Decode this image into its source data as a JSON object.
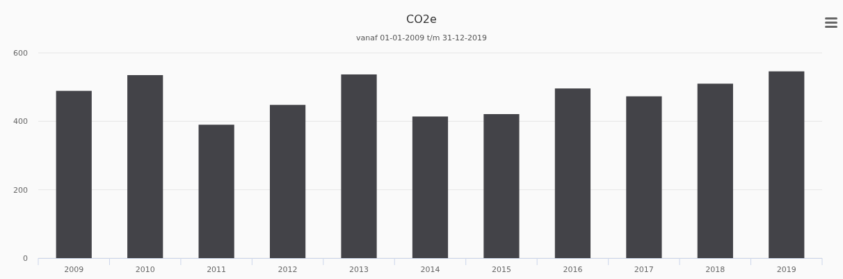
{
  "chart_data": {
    "type": "bar",
    "title": "CO2e",
    "subtitle": "vanaf 01-01-2009 t/m 31-12-2019",
    "categories": [
      "2009",
      "2010",
      "2011",
      "2012",
      "2013",
      "2014",
      "2015",
      "2016",
      "2017",
      "2018",
      "2019"
    ],
    "values": [
      489,
      535,
      390,
      448,
      537,
      414,
      421,
      496,
      473,
      510,
      546
    ],
    "color": "#434348",
    "ylim": [
      0,
      600
    ],
    "yticks": [
      0,
      200,
      400,
      600
    ],
    "grid": "y"
  }
}
